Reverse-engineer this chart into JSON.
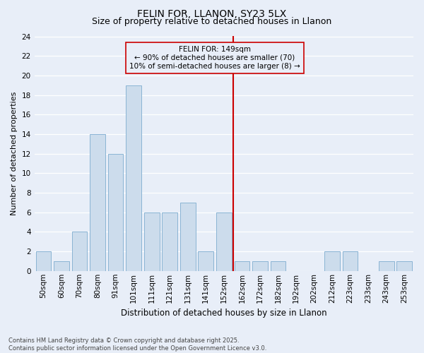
{
  "title": "FELIN FOR, LLANON, SY23 5LX",
  "subtitle": "Size of property relative to detached houses in Llanon",
  "xlabel": "Distribution of detached houses by size in Llanon",
  "ylabel": "Number of detached properties",
  "categories": [
    "50sqm",
    "60sqm",
    "70sqm",
    "80sqm",
    "91sqm",
    "101sqm",
    "111sqm",
    "121sqm",
    "131sqm",
    "141sqm",
    "152sqm",
    "162sqm",
    "172sqm",
    "182sqm",
    "192sqm",
    "202sqm",
    "212sqm",
    "223sqm",
    "233sqm",
    "243sqm",
    "253sqm"
  ],
  "values": [
    2,
    1,
    4,
    14,
    12,
    19,
    6,
    6,
    7,
    2,
    6,
    1,
    1,
    1,
    0,
    0,
    2,
    2,
    0,
    1,
    1
  ],
  "bar_color": "#ccdcec",
  "bar_edge_color": "#8ab4d4",
  "background_color": "#e8eef8",
  "grid_color": "#ffffff",
  "vline_x": 10.5,
  "vline_color": "#cc0000",
  "annotation_text": "FELIN FOR: 149sqm\n← 90% of detached houses are smaller (70)\n10% of semi-detached houses are larger (8) →",
  "annotation_box_facecolor": "#e8eef8",
  "annotation_box_edgecolor": "#cc0000",
  "ylim": [
    0,
    24
  ],
  "yticks": [
    0,
    2,
    4,
    6,
    8,
    10,
    12,
    14,
    16,
    18,
    20,
    22,
    24
  ],
  "footnote": "Contains HM Land Registry data © Crown copyright and database right 2025.\nContains public sector information licensed under the Open Government Licence v3.0.",
  "title_fontsize": 10,
  "subtitle_fontsize": 9,
  "xlabel_fontsize": 8.5,
  "ylabel_fontsize": 8,
  "tick_fontsize": 7.5,
  "annot_fontsize": 7.5,
  "footnote_fontsize": 6
}
